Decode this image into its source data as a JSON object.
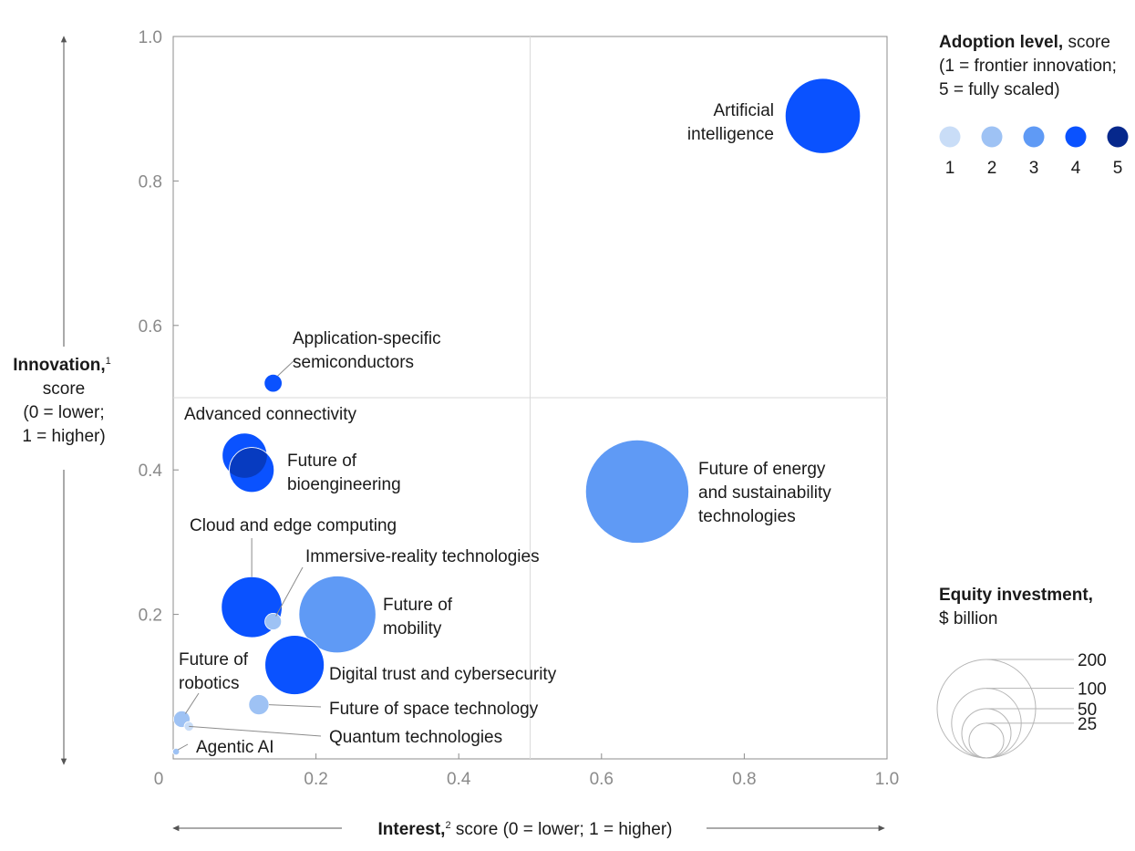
{
  "chart_data": {
    "type": "scatter",
    "xlabel": {
      "bold": "Interest,",
      "sup": "2",
      "rest": " score (0 = lower; 1 = higher)"
    },
    "ylabel": {
      "bold": "Innovation,",
      "sup": "1",
      "lines": [
        "score",
        "(0 = lower;",
        "1 = higher)"
      ]
    },
    "xlim": [
      0,
      1
    ],
    "ylim": [
      0,
      1
    ],
    "x_ticks": [
      "0",
      "0.2",
      "0.4",
      "0.6",
      "0.8",
      "1.0"
    ],
    "x_tick_values": [
      0,
      0.2,
      0.4,
      0.6,
      0.8,
      1.0
    ],
    "y_ticks": [
      "0.2",
      "0.4",
      "0.6",
      "0.8",
      "1.0"
    ],
    "y_tick_values": [
      0.2,
      0.4,
      0.6,
      0.8,
      1.0
    ],
    "quadrant_lines": {
      "x": 0.5,
      "y": 0.5
    },
    "adoption_colors": {
      "1": "#c9ddf7",
      "2": "#9ec2f4",
      "3": "#5f9af5",
      "4": "#0a52ff",
      "5": "#06288c"
    },
    "points": [
      {
        "name": "Artificial intelligence",
        "label_lines": [
          "Artificial",
          "intelligence"
        ],
        "x": 0.91,
        "y": 0.89,
        "adoption": 4,
        "investment": 124
      },
      {
        "name": "Application-specific semiconductors",
        "label_lines": [
          "Application-specific",
          "semiconductors"
        ],
        "x": 0.14,
        "y": 0.52,
        "adoption": 4,
        "investment": 7
      },
      {
        "name": "Advanced connectivity",
        "label_lines": [
          "Advanced connectivity"
        ],
        "x": 0.1,
        "y": 0.42,
        "adoption": 4,
        "investment": 44
      },
      {
        "name": "Future of bioengineering",
        "label_lines": [
          "Future of",
          "bioengineering"
        ],
        "x": 0.11,
        "y": 0.4,
        "adoption": 4,
        "investment": 44
      },
      {
        "name": "Future of energy and sustainability technologies",
        "label_lines": [
          "Future of energy",
          "and sustainability",
          "technologies"
        ],
        "x": 0.65,
        "y": 0.37,
        "adoption": 3,
        "investment": 234
      },
      {
        "name": "Cloud and edge computing",
        "label_lines": [
          "Cloud and edge computing"
        ],
        "x": 0.11,
        "y": 0.21,
        "adoption": 4,
        "investment": 81
      },
      {
        "name": "Immersive-reality technologies",
        "label_lines": [
          "Immersive-reality technologies"
        ],
        "x": 0.14,
        "y": 0.19,
        "adoption": 2,
        "investment": 6
      },
      {
        "name": "Future of mobility",
        "label_lines": [
          "Future of",
          "mobility"
        ],
        "x": 0.23,
        "y": 0.2,
        "adoption": 3,
        "investment": 130
      },
      {
        "name": "Digital trust and cybersecurity",
        "label_lines": [
          "Digital trust and cybersecurity"
        ],
        "x": 0.17,
        "y": 0.13,
        "adoption": 4,
        "investment": 77
      },
      {
        "name": "Future of space technology",
        "label_lines": [
          "Future of space technology"
        ],
        "x": 0.12,
        "y": 0.075,
        "adoption": 2,
        "investment": 9
      },
      {
        "name": "Future of robotics",
        "label_lines": [
          "Future of",
          "robotics"
        ],
        "x": 0.012,
        "y": 0.055,
        "adoption": 2,
        "investment": 6
      },
      {
        "name": "Quantum technologies",
        "label_lines": [
          "Quantum technologies"
        ],
        "x": 0.022,
        "y": 0.045,
        "adoption": 1,
        "investment": 2
      },
      {
        "name": "Agentic AI",
        "label_lines": [
          "Agentic AI"
        ],
        "x": 0.004,
        "y": 0.01,
        "adoption": 2,
        "investment": 1
      }
    ],
    "legend_adoption": {
      "title_bold": "Adoption level,",
      "title_rest": " score",
      "sub": [
        "(1 = frontier innovation;",
        "5 = fully scaled)"
      ],
      "levels": [
        "1",
        "2",
        "3",
        "4",
        "5"
      ]
    },
    "legend_investment": {
      "title_bold": "Equity investment,",
      "title_sub": "$ billion",
      "sizes": [
        {
          "label": "200",
          "value": 200
        },
        {
          "label": "100",
          "value": 100
        },
        {
          "label": "50",
          "value": 50
        },
        {
          "label": "25",
          "value": 25
        }
      ]
    }
  }
}
